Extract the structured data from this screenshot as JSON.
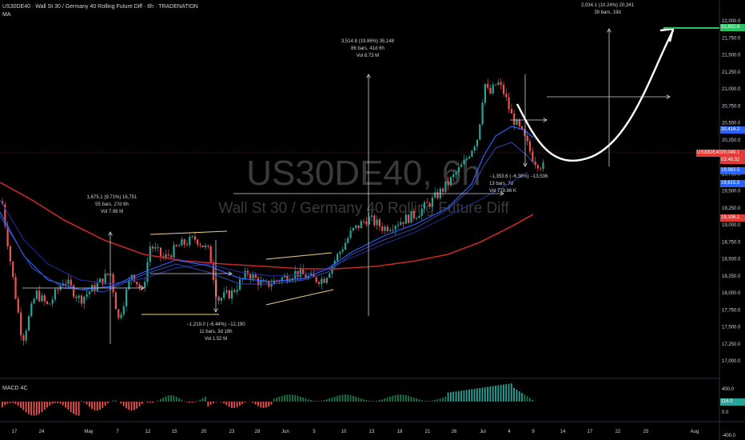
{
  "header": {
    "symbol_line": "US30DE40 · Wall St 30 / Germany 40 Rolling Future Diff · 6h · TRADENATION",
    "indicator": "MA"
  },
  "watermark": {
    "ticker": "US30DE40, 6h",
    "description": "Wall St 30 / Germany 40 Rolling Future Diff"
  },
  "macd_label": "MACD 4C",
  "price_axis": {
    "ticks": [
      "22,000.0",
      "21,750.0",
      "21,500.0",
      "21,250.0",
      "21,000.0",
      "20,750.0",
      "20,500.0",
      "20,250.0",
      "19,750.0",
      "19,500.0",
      "19,250.0",
      "19,000.0",
      "18,750.0",
      "18,500.0",
      "18,250.0",
      "18,000.0",
      "17,750.0",
      "17,500.0",
      "17,250.0",
      "17,000.0"
    ],
    "macd_ticks": [
      "400.0",
      "0.0",
      "-400.0"
    ]
  },
  "price_tags": [
    {
      "text": "21,902.6",
      "color": "#22c55e"
    },
    {
      "text": "20,416.2",
      "color": "#2962ff"
    },
    {
      "text": "20,049.1",
      "color": "#e53935"
    },
    {
      "text": "03:46:32",
      "color": "#e53935"
    },
    {
      "text": "19,963.5",
      "color": "#2962ff"
    },
    {
      "text": "19,615.5",
      "color": "#2962ff"
    },
    {
      "text": "19,106.1",
      "color": "#e53935"
    },
    {
      "text": "116.0",
      "color": "#26a69a"
    }
  ],
  "symbol_tag": "US30DE40",
  "time_axis": [
    "17",
    "24",
    "May",
    "7",
    "12",
    "15",
    "20",
    "23",
    "28",
    "Jun",
    "5",
    "10",
    "13",
    "18",
    "21",
    "26",
    "Jul",
    "4",
    "9",
    "14",
    "17",
    "22",
    "25",
    "Aug"
  ],
  "annotations": {
    "a1": {
      "line1": "1,675.1 (9.71%) 16,751",
      "line2": "55 bars, 27d 6h",
      "line3": "Vol 7.98 M"
    },
    "a2": {
      "line1": "−1,219.0 (−6.44%) −12,190",
      "line2": "11 bars, 3d 18h",
      "line3": "Vol 1.52 M"
    },
    "a3": {
      "line1": "3,514.8 (19.86%) 35,148",
      "line2": "86 bars, 41d 6h",
      "line3": "Vol 8.73 M"
    },
    "a4": {
      "line1": "−1,353.6 (−6.38%) −13,536",
      "line2": "13 bars, 7d",
      "line3": "Vol 719.86 K"
    },
    "a5": {
      "line1": "2,034.1 (10.24%) 20,341",
      "line2": "39 bars, 19d"
    }
  },
  "colors": {
    "up": "#26a69a",
    "down": "#ef5350",
    "ema_fast": "#2962ff",
    "ema_slow": "#1e2a8a",
    "ma_red": "#c62828",
    "target": "#22c55e"
  }
}
